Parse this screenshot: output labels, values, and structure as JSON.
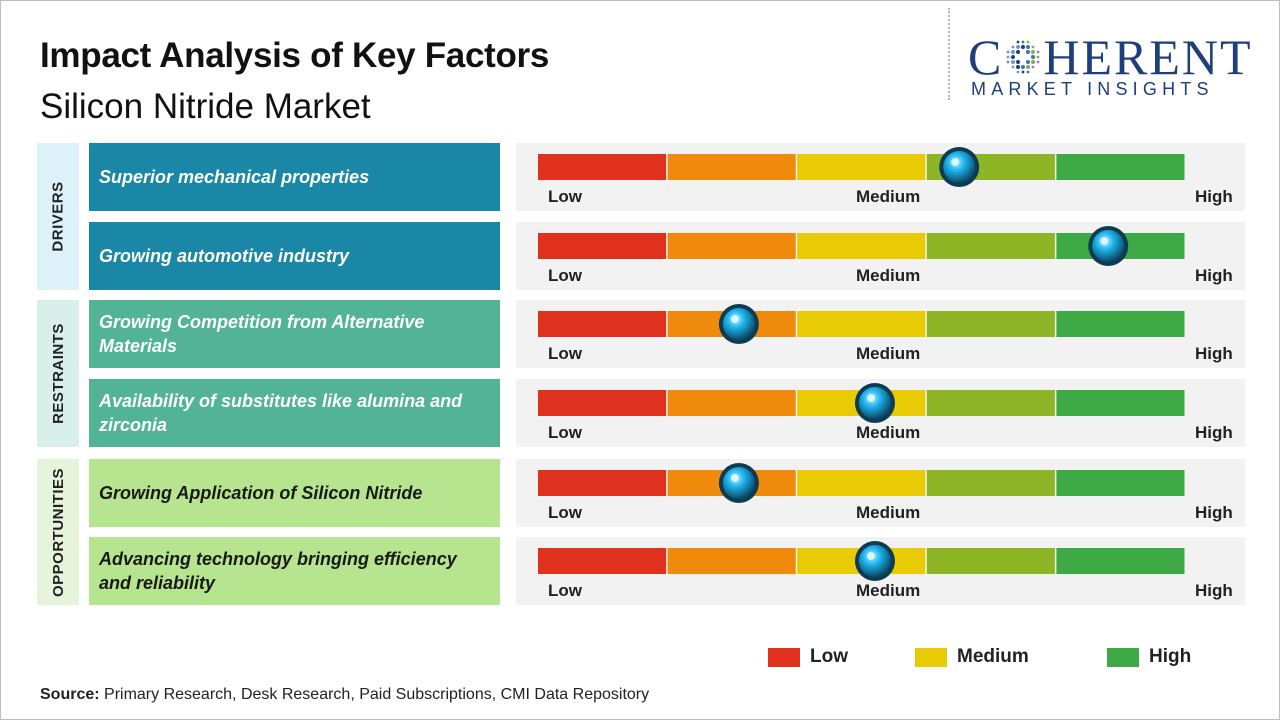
{
  "title": "Impact Analysis of Key Factors",
  "subtitle": "Silicon Nitride Market",
  "logo": {
    "brand_pre": "C",
    "brand_post": "HERENT",
    "tagline": "MARKET INSIGHTS"
  },
  "colors": {
    "scale": [
      "#e0301e",
      "#ef8a0c",
      "#e8cb05",
      "#8db526",
      "#3daa46"
    ],
    "knob": "#1fb6ef"
  },
  "chart_data": {
    "type": "gauge-rows",
    "scale_labels": {
      "low": "Low",
      "medium": "Medium",
      "high": "High"
    },
    "scale_range": [
      0,
      1
    ],
    "categories": [
      {
        "name": "DRIVERS",
        "factors": [
          {
            "label": "Superior mechanical properties",
            "impact": 0.65
          },
          {
            "label": "Growing automotive industry",
            "impact": 0.88
          }
        ]
      },
      {
        "name": "RESTRAINTS",
        "factors": [
          {
            "label": "Growing Competition from Alternative Materials",
            "impact": 0.31
          },
          {
            "label": "Availability of substitutes like alumina and zirconia",
            "impact": 0.52
          }
        ]
      },
      {
        "name": "OPPORTUNITIES",
        "factors": [
          {
            "label": "Growing Application of Silicon Nitride",
            "impact": 0.31
          },
          {
            "label": "Advancing technology bringing efficiency and reliability",
            "impact": 0.52
          }
        ]
      }
    ],
    "legend": [
      {
        "label": "Low",
        "color": "#e0301e"
      },
      {
        "label": "Medium",
        "color": "#e8cb05"
      },
      {
        "label": "High",
        "color": "#3daa46"
      }
    ]
  },
  "source": {
    "label": "Source:",
    "text": " Primary Research, Desk Research, Paid Subscriptions, CMI Data Repository"
  }
}
